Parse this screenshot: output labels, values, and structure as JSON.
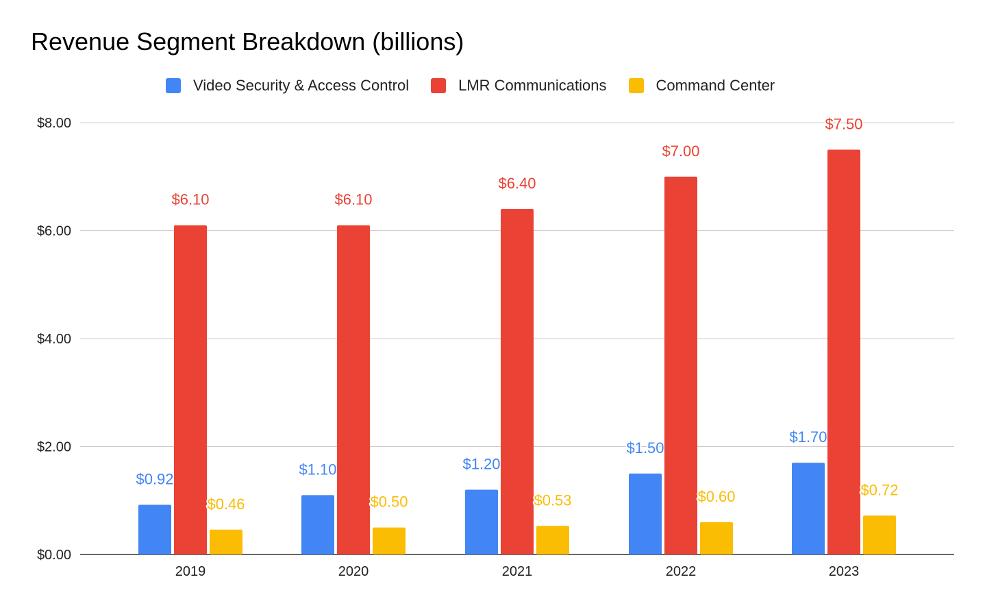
{
  "chart_data": {
    "type": "bar",
    "title": "Revenue Segment Breakdown (billions)",
    "xlabel": "",
    "ylabel": "",
    "categories": [
      "2019",
      "2020",
      "2021",
      "2022",
      "2023"
    ],
    "series": [
      {
        "name": "Video Security & Access Control",
        "color": "#4285f4",
        "values": [
          0.92,
          1.1,
          1.2,
          1.5,
          1.7
        ],
        "labels": [
          "$0.92",
          "$1.10",
          "$1.20",
          "$1.50",
          "$1.70"
        ]
      },
      {
        "name": "LMR Communications",
        "color": "#ea4335",
        "values": [
          6.1,
          6.1,
          6.4,
          7.0,
          7.5
        ],
        "labels": [
          "$6.10",
          "$6.10",
          "$6.40",
          "$7.00",
          "$7.50"
        ]
      },
      {
        "name": "Command Center",
        "color": "#fbbc04",
        "values": [
          0.46,
          0.5,
          0.53,
          0.6,
          0.72
        ],
        "labels": [
          "$0.46",
          "$0.50",
          "$0.53",
          "$0.60",
          "$0.72"
        ]
      }
    ],
    "ylim": [
      0,
      8
    ],
    "yticks": [
      0,
      2,
      4,
      6,
      8
    ],
    "ytick_labels": [
      "$0.00",
      "$2.00",
      "$4.00",
      "$6.00",
      "$8.00"
    ],
    "grid": true,
    "legend_position": "top"
  }
}
